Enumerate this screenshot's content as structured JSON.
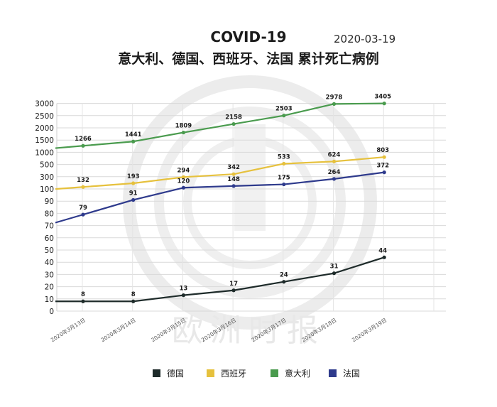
{
  "title": "COVID-19",
  "subtitle": "意大利、德国、西班牙、法国 累计死亡病例",
  "date": "2020-03-19",
  "watermark_text": "欧洲时报",
  "chart_data": {
    "type": "line",
    "title": "COVID-19",
    "subtitle": "意大利、德国、西班牙、法国 累计死亡病例",
    "categories": [
      "2020年3月13日",
      "2020年3月14日",
      "2020年3月15日",
      "2020年3月16日",
      "2020年3月17日",
      "2020年3月18日",
      "2020年3月19日"
    ],
    "y_ticks": [
      0,
      10,
      20,
      30,
      40,
      50,
      60,
      70,
      80,
      90,
      100,
      300,
      500,
      1000,
      1500,
      2000,
      2500,
      3000
    ],
    "grid": true,
    "legend_position": "bottom",
    "series": [
      {
        "name": "德国",
        "color": "#1e2b2a",
        "values": [
          8,
          8,
          13,
          17,
          24,
          31,
          44
        ]
      },
      {
        "name": "西班牙",
        "color": "#e6c13d",
        "values": [
          132,
          193,
          294,
          342,
          533,
          624,
          803
        ]
      },
      {
        "name": "意大利",
        "color": "#4a9b4e",
        "values": [
          1266,
          1441,
          1809,
          2158,
          2503,
          2978,
          3405
        ]
      },
      {
        "name": "法国",
        "color": "#2e3a8c",
        "values": [
          79,
          91,
          120,
          148,
          175,
          264,
          372
        ]
      }
    ]
  }
}
